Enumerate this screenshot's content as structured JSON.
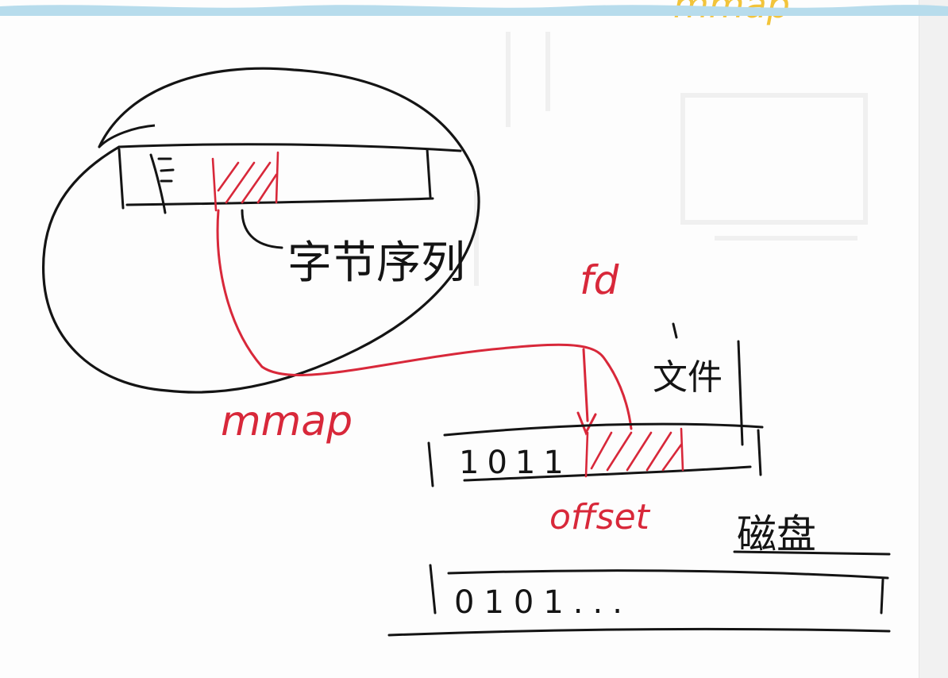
{
  "title_fragment": "mmap",
  "process_label": "字节序列",
  "mmap_label": "mmap",
  "fd_label": "fd",
  "file_label": "文件",
  "offset_label": "offset",
  "disk_label": "磁盘",
  "file_bits": "1011",
  "disk_bits": "0101...",
  "colors": {
    "ink": "#141414",
    "red": "#d8283a",
    "yellow": "#f2c43a",
    "wave": "#b7dcec"
  }
}
